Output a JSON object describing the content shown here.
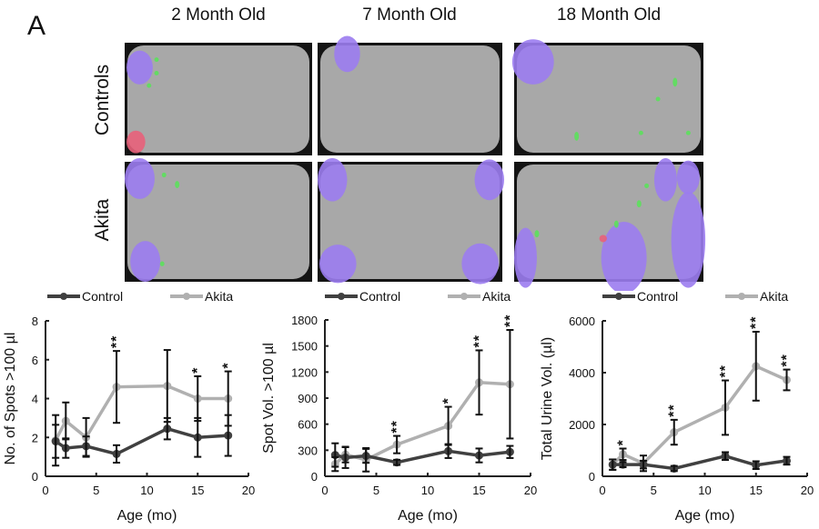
{
  "figure": {
    "panel_label": "A",
    "column_titles": [
      "2 Month Old",
      "7 Month Old",
      "18 Month Old"
    ],
    "row_labels": [
      "Controls",
      "Akita"
    ],
    "image_colors": {
      "void_large": "#9b7cf0",
      "void_small": "#5be05b",
      "void_red": "#e8607a",
      "floor": "#a8a8a8",
      "border": "#141414"
    }
  },
  "chart_data": [
    {
      "type": "line",
      "xlabel": "Age (mo)",
      "ylabel": "No. of Spots >100 µl",
      "xlim": [
        0,
        20
      ],
      "ylim": [
        0,
        8
      ],
      "xticks": [
        0,
        5,
        10,
        15,
        20
      ],
      "yticks": [
        0,
        2,
        4,
        6,
        8
      ],
      "legend": "top",
      "x": [
        1,
        2,
        4,
        7,
        12,
        15,
        18
      ],
      "series": [
        {
          "name": "Control",
          "color": "#404040",
          "values": [
            1.8,
            1.45,
            1.55,
            1.15,
            2.45,
            2.0,
            2.1
          ],
          "error": [
            0.85,
            0.5,
            0.5,
            0.45,
            0.55,
            1.0,
            1.05
          ]
        },
        {
          "name": "Akita",
          "color": "#b0b0b0",
          "values": [
            1.85,
            2.85,
            2.0,
            4.6,
            4.65,
            4.0,
            4.0
          ],
          "error": [
            1.3,
            0.95,
            1.0,
            1.85,
            1.85,
            1.15,
            1.4
          ]
        }
      ],
      "significance": [
        {
          "x": 7,
          "label": "**"
        },
        {
          "x": 15,
          "label": "*"
        },
        {
          "x": 18,
          "label": "*"
        }
      ]
    },
    {
      "type": "line",
      "xlabel": "Age (mo)",
      "ylabel": "Spot Vol. >100 µl",
      "xlim": [
        0,
        20
      ],
      "ylim": [
        0,
        1800
      ],
      "xticks": [
        0,
        5,
        10,
        15,
        20
      ],
      "yticks": [
        0,
        300,
        600,
        900,
        1200,
        1500,
        1800
      ],
      "legend": "top",
      "x": [
        1,
        2,
        4,
        7,
        12,
        15,
        18
      ],
      "series": [
        {
          "name": "Control",
          "color": "#404040",
          "values": [
            245,
            215,
            235,
            160,
            290,
            240,
            280
          ],
          "error": [
            135,
            120,
            80,
            30,
            80,
            80,
            70
          ]
        },
        {
          "name": "Akita",
          "color": "#b0b0b0",
          "values": [
            140,
            250,
            190,
            365,
            580,
            1080,
            1060
          ],
          "error": [
            80,
            90,
            135,
            100,
            220,
            370,
            625
          ]
        }
      ],
      "significance": [
        {
          "x": 7,
          "label": "**"
        },
        {
          "x": 12,
          "label": "*"
        },
        {
          "x": 15,
          "label": "**"
        },
        {
          "x": 18,
          "label": "**"
        }
      ]
    },
    {
      "type": "line",
      "xlabel": "Age (mo)",
      "ylabel": "Total Urine Vol. (µl)",
      "xlim": [
        0,
        20
      ],
      "ylim": [
        0,
        6000
      ],
      "xticks": [
        0,
        5,
        10,
        15,
        20
      ],
      "yticks": [
        0,
        2000,
        4000,
        6000
      ],
      "legend": "top",
      "x": [
        1,
        2,
        4,
        7,
        12,
        15,
        18
      ],
      "series": [
        {
          "name": "Control",
          "color": "#404040",
          "values": [
            450,
            450,
            450,
            300,
            780,
            430,
            600
          ],
          "error": [
            200,
            100,
            150,
            100,
            150,
            150,
            150
          ]
        },
        {
          "name": "Akita",
          "color": "#b0b0b0",
          "values": [
            450,
            850,
            500,
            1700,
            2650,
            4250,
            3720
          ],
          "error": [
            200,
            220,
            300,
            480,
            1050,
            1330,
            400
          ]
        }
      ],
      "significance": [
        {
          "x": 2,
          "label": "*"
        },
        {
          "x": 7,
          "label": "**"
        },
        {
          "x": 12,
          "label": "**"
        },
        {
          "x": 15,
          "label": "**"
        },
        {
          "x": 18,
          "label": "**"
        }
      ]
    }
  ]
}
